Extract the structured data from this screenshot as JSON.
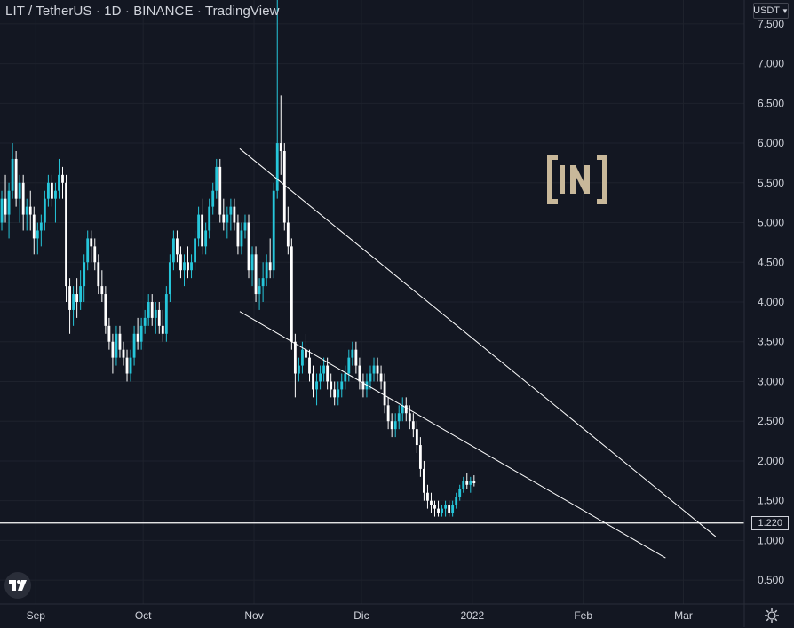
{
  "header": {
    "title": "LIT / TetherUS · 1D · BINANCE · TradingView"
  },
  "currency_button": {
    "label": "USDT",
    "chevron": "chevron-down-icon"
  },
  "last_price_tag": "1.220",
  "watermark": "beincrypto-logo",
  "colors": {
    "background": "#131722",
    "candle_up": "#26c6da",
    "candle_down": "#ffffff",
    "grid": "#1e222d",
    "text": "#d1d4dc"
  },
  "chart_data": {
    "type": "candlestick",
    "title": "LIT / TetherUS · 1D · BINANCE",
    "xlabel": "",
    "ylabel": "",
    "x_ticks": [
      "Sep",
      "Oct",
      "Nov",
      "Dic",
      "2022",
      "Feb",
      "Mar"
    ],
    "y_ticks": [
      "7.500",
      "7.000",
      "6.500",
      "6.000",
      "5.500",
      "5.000",
      "4.500",
      "4.000",
      "3.500",
      "3.000",
      "2.500",
      "2.000",
      "1.500",
      "1.000",
      "0.500"
    ],
    "ylim": [
      0.2,
      7.8
    ],
    "xlim": [
      "2021-08-22",
      "2022-03-18"
    ],
    "horizontal_line": 1.22,
    "trendlines": [
      {
        "from": [
          "2021-10-28",
          5.93
        ],
        "to": [
          "2022-03-10",
          1.05
        ]
      },
      {
        "from": [
          "2021-10-28",
          3.88
        ],
        "to": [
          "2022-02-24",
          0.78
        ]
      }
    ],
    "series": [
      {
        "name": "",
        "start_date": "2021-08-22",
        "ohlc": [
          [
            5.0,
            5.4,
            4.9,
            5.3
          ],
          [
            5.3,
            5.6,
            5.0,
            5.1
          ],
          [
            5.1,
            5.5,
            4.8,
            5.4
          ],
          [
            5.4,
            6.0,
            5.3,
            5.8
          ],
          [
            5.8,
            5.9,
            5.2,
            5.3
          ],
          [
            5.3,
            5.6,
            5.0,
            5.5
          ],
          [
            5.5,
            5.6,
            4.9,
            5.1
          ],
          [
            5.1,
            5.3,
            4.9,
            5.2
          ],
          [
            5.2,
            5.4,
            4.9,
            5.1
          ],
          [
            5.1,
            5.2,
            4.6,
            4.8
          ],
          [
            4.8,
            5.0,
            4.6,
            4.9
          ],
          [
            4.9,
            5.1,
            4.7,
            5.0
          ],
          [
            5.0,
            5.4,
            4.9,
            5.3
          ],
          [
            5.3,
            5.6,
            5.2,
            5.5
          ],
          [
            5.5,
            5.6,
            5.2,
            5.3
          ],
          [
            5.3,
            5.5,
            5.0,
            5.4
          ],
          [
            5.4,
            5.8,
            5.3,
            5.6
          ],
          [
            5.6,
            5.7,
            5.3,
            5.5
          ],
          [
            5.5,
            5.6,
            4.0,
            4.2
          ],
          [
            4.2,
            4.3,
            3.6,
            3.9
          ],
          [
            3.9,
            4.2,
            3.7,
            4.1
          ],
          [
            4.1,
            4.3,
            3.8,
            4.0
          ],
          [
            4.0,
            4.4,
            3.9,
            4.2
          ],
          [
            4.2,
            4.6,
            4.0,
            4.5
          ],
          [
            4.5,
            4.9,
            4.4,
            4.8
          ],
          [
            4.8,
            4.9,
            4.5,
            4.7
          ],
          [
            4.7,
            4.8,
            4.4,
            4.5
          ],
          [
            4.5,
            4.6,
            4.1,
            4.2
          ],
          [
            4.2,
            4.4,
            4.0,
            4.1
          ],
          [
            4.1,
            4.2,
            3.6,
            3.7
          ],
          [
            3.7,
            3.8,
            3.4,
            3.5
          ],
          [
            3.5,
            3.6,
            3.1,
            3.3
          ],
          [
            3.3,
            3.7,
            3.2,
            3.6
          ],
          [
            3.6,
            3.7,
            3.3,
            3.4
          ],
          [
            3.4,
            3.5,
            3.2,
            3.3
          ],
          [
            3.3,
            3.4,
            3.0,
            3.1
          ],
          [
            3.1,
            3.4,
            3.0,
            3.3
          ],
          [
            3.3,
            3.7,
            3.2,
            3.6
          ],
          [
            3.6,
            3.8,
            3.4,
            3.5
          ],
          [
            3.5,
            3.8,
            3.4,
            3.7
          ],
          [
            3.7,
            3.9,
            3.6,
            3.8
          ],
          [
            3.8,
            4.1,
            3.7,
            4.0
          ],
          [
            4.0,
            4.1,
            3.7,
            3.8
          ],
          [
            3.8,
            4.0,
            3.6,
            3.9
          ],
          [
            3.9,
            4.0,
            3.6,
            3.7
          ],
          [
            3.7,
            3.9,
            3.5,
            3.6
          ],
          [
            3.6,
            4.2,
            3.5,
            4.1
          ],
          [
            4.1,
            4.6,
            4.0,
            4.5
          ],
          [
            4.5,
            4.9,
            4.4,
            4.8
          ],
          [
            4.8,
            4.9,
            4.5,
            4.6
          ],
          [
            4.6,
            4.7,
            4.3,
            4.4
          ],
          [
            4.4,
            4.6,
            4.2,
            4.5
          ],
          [
            4.5,
            4.7,
            4.3,
            4.4
          ],
          [
            4.4,
            4.6,
            4.3,
            4.5
          ],
          [
            4.5,
            4.9,
            4.4,
            4.8
          ],
          [
            4.8,
            5.2,
            4.7,
            5.1
          ],
          [
            5.1,
            5.3,
            4.6,
            4.7
          ],
          [
            4.7,
            5.0,
            4.6,
            4.9
          ],
          [
            4.9,
            5.3,
            4.8,
            5.2
          ],
          [
            5.2,
            5.5,
            5.1,
            5.4
          ],
          [
            5.4,
            5.8,
            5.3,
            5.7
          ],
          [
            5.7,
            5.8,
            5.0,
            5.1
          ],
          [
            5.1,
            5.3,
            4.9,
            5.0
          ],
          [
            5.0,
            5.2,
            4.8,
            5.1
          ],
          [
            5.1,
            5.3,
            4.9,
            5.2
          ],
          [
            5.2,
            5.3,
            4.9,
            5.0
          ],
          [
            5.0,
            5.1,
            4.6,
            4.7
          ],
          [
            4.7,
            5.0,
            4.6,
            4.9
          ],
          [
            4.9,
            5.1,
            4.8,
            5.0
          ],
          [
            5.0,
            5.1,
            4.3,
            4.4
          ],
          [
            4.4,
            4.7,
            4.2,
            4.6
          ],
          [
            4.6,
            4.7,
            4.0,
            4.1
          ],
          [
            4.1,
            4.3,
            3.9,
            4.2
          ],
          [
            4.2,
            4.5,
            4.0,
            4.3
          ],
          [
            4.3,
            4.6,
            4.2,
            4.5
          ],
          [
            4.5,
            4.8,
            4.3,
            4.4
          ],
          [
            4.4,
            5.5,
            4.3,
            5.4
          ],
          [
            5.4,
            7.8,
            5.3,
            6.0
          ],
          [
            6.0,
            6.6,
            5.6,
            5.9
          ],
          [
            5.9,
            6.0,
            4.9,
            5.0
          ],
          [
            5.0,
            5.2,
            4.6,
            4.7
          ],
          [
            4.7,
            4.8,
            3.4,
            3.5
          ],
          [
            3.5,
            3.6,
            2.8,
            3.1
          ],
          [
            3.1,
            3.3,
            3.0,
            3.2
          ],
          [
            3.2,
            3.5,
            3.1,
            3.4
          ],
          [
            3.4,
            3.6,
            3.2,
            3.3
          ],
          [
            3.3,
            3.4,
            3.0,
            3.1
          ],
          [
            3.1,
            3.2,
            2.8,
            2.9
          ],
          [
            2.9,
            3.1,
            2.7,
            3.0
          ],
          [
            3.0,
            3.2,
            2.9,
            3.1
          ],
          [
            3.1,
            3.3,
            3.0,
            3.2
          ],
          [
            3.2,
            3.3,
            2.9,
            3.0
          ],
          [
            3.0,
            3.1,
            2.8,
            2.9
          ],
          [
            2.9,
            3.0,
            2.7,
            2.8
          ],
          [
            2.8,
            3.0,
            2.7,
            2.9
          ],
          [
            2.9,
            3.1,
            2.8,
            3.0
          ],
          [
            3.0,
            3.2,
            2.9,
            3.1
          ],
          [
            3.1,
            3.4,
            3.0,
            3.3
          ],
          [
            3.3,
            3.5,
            3.2,
            3.4
          ],
          [
            3.4,
            3.5,
            3.1,
            3.2
          ],
          [
            3.2,
            3.3,
            2.9,
            3.0
          ],
          [
            3.0,
            3.1,
            2.8,
            2.9
          ],
          [
            2.9,
            3.1,
            2.8,
            3.0
          ],
          [
            3.0,
            3.2,
            2.9,
            3.1
          ],
          [
            3.1,
            3.3,
            3.0,
            3.2
          ],
          [
            3.2,
            3.3,
            3.0,
            3.1
          ],
          [
            3.1,
            3.2,
            2.9,
            3.0
          ],
          [
            3.0,
            3.1,
            2.6,
            2.7
          ],
          [
            2.7,
            2.8,
            2.4,
            2.5
          ],
          [
            2.5,
            2.6,
            2.3,
            2.4
          ],
          [
            2.4,
            2.6,
            2.3,
            2.5
          ],
          [
            2.5,
            2.7,
            2.4,
            2.6
          ],
          [
            2.6,
            2.8,
            2.5,
            2.7
          ],
          [
            2.7,
            2.8,
            2.5,
            2.6
          ],
          [
            2.6,
            2.7,
            2.4,
            2.5
          ],
          [
            2.5,
            2.6,
            2.3,
            2.4
          ],
          [
            2.4,
            2.5,
            2.1,
            2.2
          ],
          [
            2.2,
            2.3,
            1.8,
            1.9
          ],
          [
            1.9,
            2.0,
            1.5,
            1.6
          ],
          [
            1.6,
            1.7,
            1.4,
            1.5
          ],
          [
            1.5,
            1.6,
            1.35,
            1.45
          ],
          [
            1.45,
            1.5,
            1.3,
            1.4
          ],
          [
            1.4,
            1.5,
            1.3,
            1.35
          ],
          [
            1.35,
            1.45,
            1.3,
            1.4
          ],
          [
            1.4,
            1.5,
            1.3,
            1.45
          ],
          [
            1.45,
            1.5,
            1.3,
            1.35
          ],
          [
            1.35,
            1.5,
            1.3,
            1.45
          ],
          [
            1.45,
            1.6,
            1.4,
            1.55
          ],
          [
            1.55,
            1.7,
            1.5,
            1.65
          ],
          [
            1.65,
            1.8,
            1.6,
            1.75
          ],
          [
            1.75,
            1.85,
            1.65,
            1.7
          ],
          [
            1.7,
            1.8,
            1.6,
            1.75
          ],
          [
            1.75,
            1.82,
            1.68,
            1.72
          ]
        ]
      }
    ]
  }
}
